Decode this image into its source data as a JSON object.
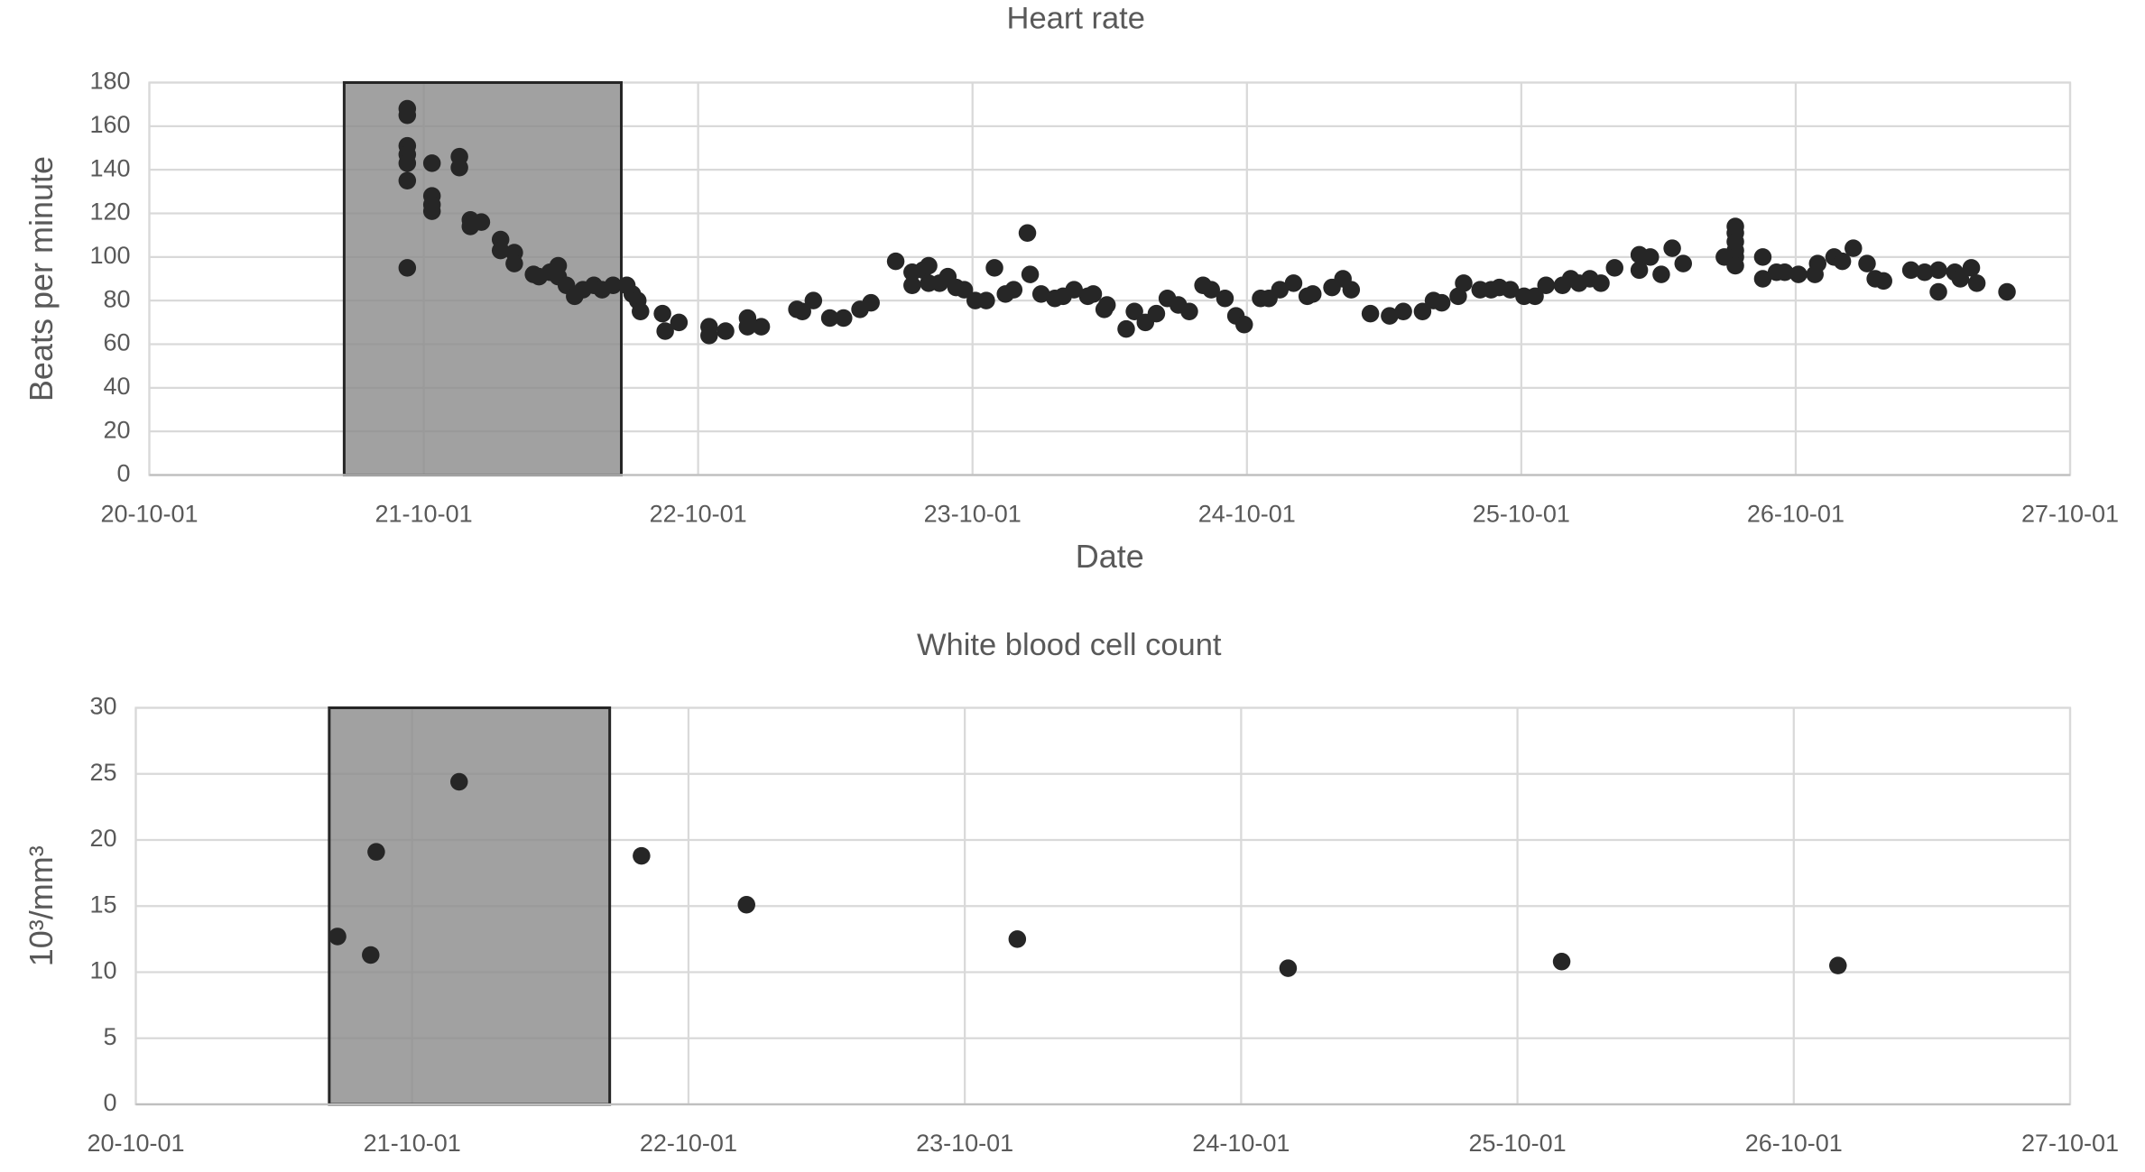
{
  "chart_data": [
    {
      "type": "scatter",
      "title": "Heart rate",
      "xlabel": "Date",
      "ylabel": "Beats per minute",
      "color": "#262626",
      "grid": true,
      "shaded_range": [
        0.71,
        1.72
      ],
      "xlim": [
        0,
        7
      ],
      "xticks": [
        {
          "value": 0,
          "label": "20-10-01"
        },
        {
          "value": 1,
          "label": "21-10-01"
        },
        {
          "value": 2,
          "label": "22-10-01"
        },
        {
          "value": 3,
          "label": "23-10-01"
        },
        {
          "value": 4,
          "label": "24-10-01"
        },
        {
          "value": 5,
          "label": "25-10-01"
        },
        {
          "value": 6,
          "label": "26-10-01"
        },
        {
          "value": 7,
          "label": "27-10-01"
        }
      ],
      "ylim": [
        0,
        180
      ],
      "yticks": [
        0,
        20,
        40,
        60,
        80,
        100,
        120,
        140,
        160,
        180
      ],
      "x": [
        0.94,
        0.94,
        0.94,
        0.94,
        0.94,
        0.94,
        0.94,
        1.03,
        1.03,
        1.03,
        1.03,
        1.13,
        1.13,
        1.17,
        1.17,
        1.21,
        1.28,
        1.28,
        1.33,
        1.33,
        1.4,
        1.42,
        1.46,
        1.49,
        1.49,
        1.52,
        1.55,
        1.58,
        1.62,
        1.65,
        1.69,
        1.74,
        1.76,
        1.78,
        1.79,
        1.87,
        1.88,
        1.93,
        2.04,
        2.04,
        2.1,
        2.18,
        2.18,
        2.23,
        2.36,
        2.38,
        2.42,
        2.48,
        2.53,
        2.59,
        2.63,
        2.72,
        2.78,
        2.78,
        2.82,
        2.84,
        2.84,
        2.88,
        2.91,
        2.94,
        2.97,
        3.01,
        3.05,
        3.08,
        3.12,
        3.15,
        3.2,
        3.21,
        3.25,
        3.3,
        3.33,
        3.37,
        3.42,
        3.44,
        3.48,
        3.49,
        3.56,
        3.59,
        3.63,
        3.67,
        3.71,
        3.75,
        3.79,
        3.84,
        3.87,
        3.92,
        3.96,
        3.99,
        4.05,
        4.08,
        4.12,
        4.17,
        4.22,
        4.24,
        4.31,
        4.35,
        4.38,
        4.45,
        4.52,
        4.57,
        4.64,
        4.68,
        4.71,
        4.77,
        4.79,
        4.85,
        4.89,
        4.92,
        4.96,
        5.01,
        5.05,
        5.09,
        5.15,
        5.18,
        5.21,
        5.25,
        5.29,
        5.34,
        5.43,
        5.43,
        5.47,
        5.51,
        5.55,
        5.59,
        5.74,
        5.78,
        5.78,
        5.78,
        5.78,
        5.78,
        5.78,
        5.88,
        5.88,
        5.93,
        5.96,
        6.01,
        6.07,
        6.08,
        6.14,
        6.17,
        6.21,
        6.26,
        6.29,
        6.32,
        6.42,
        6.47,
        6.52,
        6.52,
        6.58,
        6.6,
        6.64,
        6.66,
        6.77
      ],
      "values": [
        168,
        165,
        151,
        147,
        143,
        135,
        95,
        143,
        128,
        124,
        121,
        146,
        141,
        117,
        114,
        116,
        108,
        103,
        102,
        97,
        92,
        91,
        93,
        96,
        91,
        87,
        82,
        85,
        87,
        85,
        87,
        87,
        83,
        80,
        75,
        74,
        66,
        70,
        68,
        64,
        66,
        72,
        68,
        68,
        76,
        75,
        80,
        72,
        72,
        76,
        79,
        98,
        93,
        87,
        94,
        96,
        88,
        88,
        91,
        86,
        85,
        80,
        80,
        95,
        83,
        85,
        111,
        92,
        83,
        81,
        82,
        85,
        82,
        83,
        76,
        78,
        67,
        75,
        70,
        74,
        81,
        78,
        75,
        87,
        85,
        81,
        73,
        69,
        81,
        81,
        85,
        88,
        82,
        83,
        86,
        90,
        85,
        74,
        73,
        75,
        75,
        80,
        79,
        82,
        88,
        85,
        85,
        86,
        85,
        82,
        82,
        87,
        87,
        90,
        88,
        90,
        88,
        95,
        101,
        94,
        100,
        92,
        104,
        97,
        100,
        114,
        111,
        107,
        103,
        100,
        96,
        100,
        90,
        93,
        93,
        92,
        92,
        97,
        100,
        98,
        104,
        97,
        90,
        89,
        94,
        93,
        94,
        84,
        93,
        90,
        95,
        88,
        84
      ]
    },
    {
      "type": "scatter",
      "title": "White blood cell count",
      "ylabel": "10³/mm³",
      "color": "#262626",
      "grid": true,
      "shaded_range": [
        0.7,
        1.715
      ],
      "xlim": [
        0,
        7
      ],
      "xticks": [
        {
          "value": 0,
          "label": "20-10-01"
        },
        {
          "value": 1,
          "label": "21-10-01"
        },
        {
          "value": 2,
          "label": "22-10-01"
        },
        {
          "value": 3,
          "label": "23-10-01"
        },
        {
          "value": 4,
          "label": "24-10-01"
        },
        {
          "value": 5,
          "label": "25-10-01"
        },
        {
          "value": 6,
          "label": "26-10-01"
        },
        {
          "value": 7,
          "label": "27-10-01"
        }
      ],
      "ylim": [
        0,
        30
      ],
      "yticks": [
        0,
        5,
        10,
        15,
        20,
        25,
        30
      ],
      "x": [
        0.73,
        0.85,
        0.87,
        1.17,
        1.83,
        2.21,
        3.19,
        4.17,
        5.16,
        6.16
      ],
      "values": [
        12.7,
        11.3,
        19.1,
        24.4,
        18.8,
        15.1,
        12.5,
        10.3,
        10.8,
        10.5
      ]
    }
  ]
}
